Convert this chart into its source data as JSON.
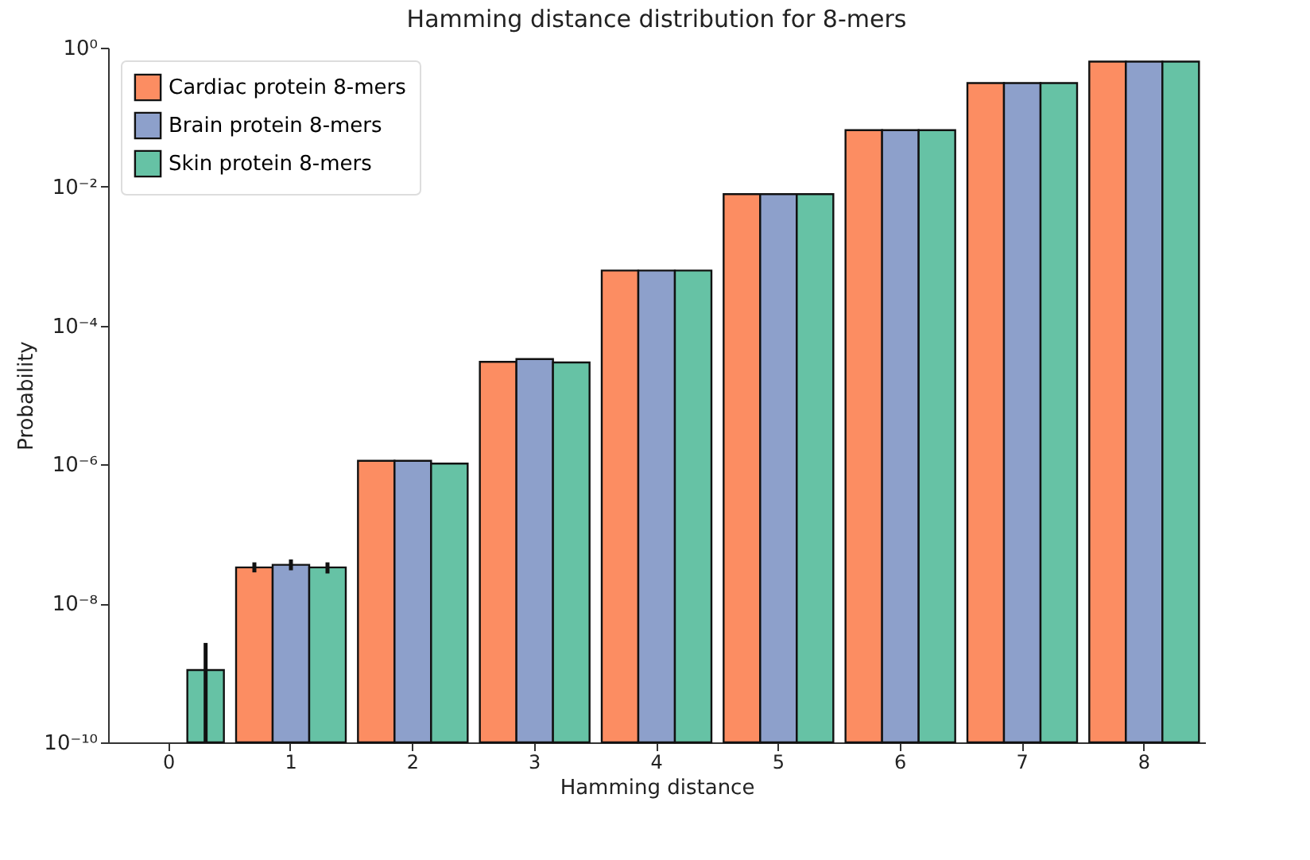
{
  "chart_data": {
    "type": "bar",
    "title": "Hamming distance distribution for 8-mers",
    "xlabel": "Hamming distance",
    "ylabel": "Probability",
    "categories": [
      "0",
      "1",
      "2",
      "3",
      "4",
      "5",
      "6",
      "7",
      "8"
    ],
    "series": [
      {
        "name": "Cardiac protein 8-mers",
        "color": "#fc8d62",
        "values": [
          null,
          3.3e-08,
          1.13e-06,
          3e-05,
          0.00062,
          0.0078,
          0.065,
          0.31,
          0.63
        ],
        "errors": [
          null,
          [
            2.8e-08,
            3.9e-08
          ],
          null,
          null,
          null,
          null,
          null,
          null,
          null
        ]
      },
      {
        "name": "Brain protein 8-mers",
        "color": "#8da0cb",
        "values": [
          null,
          3.6e-08,
          1.13e-06,
          3.3e-05,
          0.00062,
          0.0078,
          0.065,
          0.31,
          0.63
        ],
        "errors": [
          null,
          [
            3e-08,
            4.3e-08
          ],
          null,
          null,
          null,
          null,
          null,
          null,
          null
        ]
      },
      {
        "name": "Skin protein 8-mers",
        "color": "#66c2a5",
        "values": [
          1.1e-09,
          3.3e-08,
          1.03e-06,
          2.95e-05,
          0.00062,
          0.0078,
          0.065,
          0.31,
          0.63
        ],
        "errors": [
          [
            1e-10,
            2.7e-09
          ],
          [
            2.7e-08,
            3.9e-08
          ],
          null,
          null,
          null,
          null,
          null,
          null,
          null
        ]
      }
    ],
    "log": "y",
    "ylim": [
      1e-10,
      1
    ],
    "yticks": [
      {
        "value": 1e-10,
        "label": "10⁻¹⁰"
      },
      {
        "value": 1e-08,
        "label": "10⁻⁸"
      },
      {
        "value": 1e-06,
        "label": "10⁻⁶"
      },
      {
        "value": 0.0001,
        "label": "10⁻⁴"
      },
      {
        "value": 0.01,
        "label": "10⁻²"
      },
      {
        "value": 1,
        "label": "10⁰"
      }
    ],
    "legend": "top left",
    "grid": false
  }
}
